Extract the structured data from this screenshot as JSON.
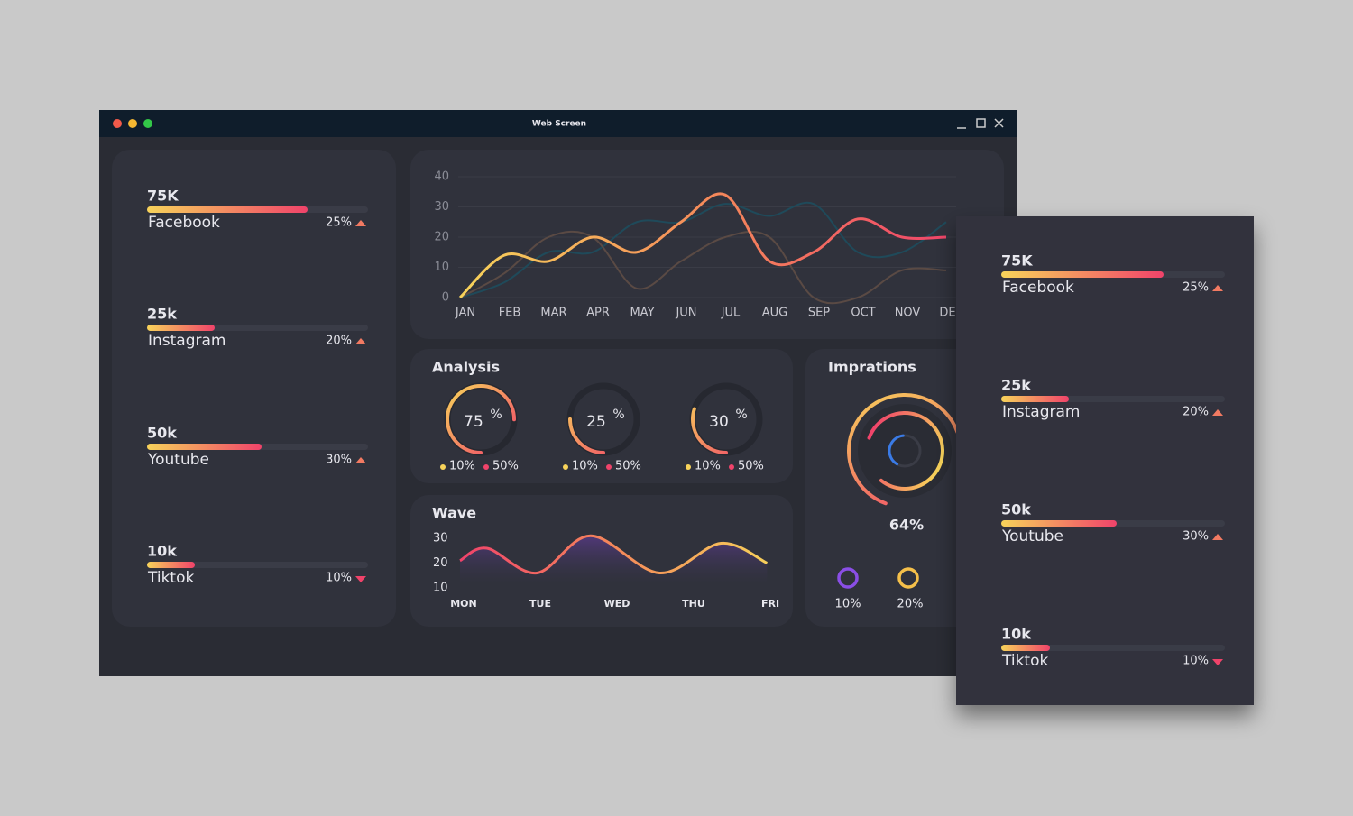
{
  "window": {
    "title": "Web Screen"
  },
  "social": [
    {
      "value": "75K",
      "name": "Facebook",
      "change": "25%",
      "trend": "up"
    },
    {
      "value": "25k",
      "name": "Instagram",
      "change": "20%",
      "trend": "up"
    },
    {
      "value": "50k",
      "name": "Youtube",
      "change": "30%",
      "trend": "up"
    },
    {
      "value": "10k",
      "name": "Tiktok",
      "change": "10%",
      "trend": "down"
    }
  ],
  "line_chart": {
    "type": "line",
    "categories": [
      "JAN",
      "FEB",
      "MAR",
      "APR",
      "MAY",
      "JUN",
      "JUL",
      "AUG",
      "SEP",
      "OCT",
      "NOV",
      "DEC"
    ],
    "ylim": [
      0,
      40
    ],
    "yticks": [
      0,
      10,
      20,
      30,
      40
    ],
    "grid": true,
    "series": [
      {
        "color": "#1f4a5a",
        "values": [
          0,
          5,
          15,
          15,
          25,
          25,
          31,
          27,
          31,
          15,
          15,
          25
        ]
      },
      {
        "color": "#5a4a44",
        "values": [
          0,
          8,
          20,
          20,
          3,
          12,
          20,
          20,
          0,
          0,
          9,
          9
        ]
      },
      {
        "color": "#f0436a",
        "values": [
          0,
          14,
          12,
          20,
          15,
          25,
          34,
          12,
          15,
          26,
          20,
          20
        ]
      }
    ]
  },
  "analysis": {
    "title": "Analysis",
    "rings": [
      {
        "value": 75,
        "unit": "%",
        "legend": [
          "10%",
          "50%"
        ]
      },
      {
        "value": 25,
        "unit": "%",
        "legend": [
          "10%",
          "50%"
        ]
      },
      {
        "value": 30,
        "unit": "%",
        "legend": [
          "10%",
          "50%"
        ]
      }
    ]
  },
  "wave": {
    "type": "line",
    "title": "Wave",
    "categories": [
      "MON",
      "TUE",
      "WED",
      "THU",
      "FRI"
    ],
    "x": [
      0,
      0.35,
      1,
      1.7,
      2.6,
      3.4,
      4
    ],
    "values": [
      21,
      26,
      16,
      31,
      16,
      28,
      20
    ],
    "ylim": [
      10,
      30
    ],
    "yticks": [
      30,
      20,
      10
    ]
  },
  "impressions": {
    "title": "Imprations",
    "value": 64,
    "label": "64%",
    "items": [
      {
        "label": "10%",
        "color": "#8a4ee6"
      },
      {
        "label": "20%",
        "color": "#f5c04a"
      }
    ]
  }
}
